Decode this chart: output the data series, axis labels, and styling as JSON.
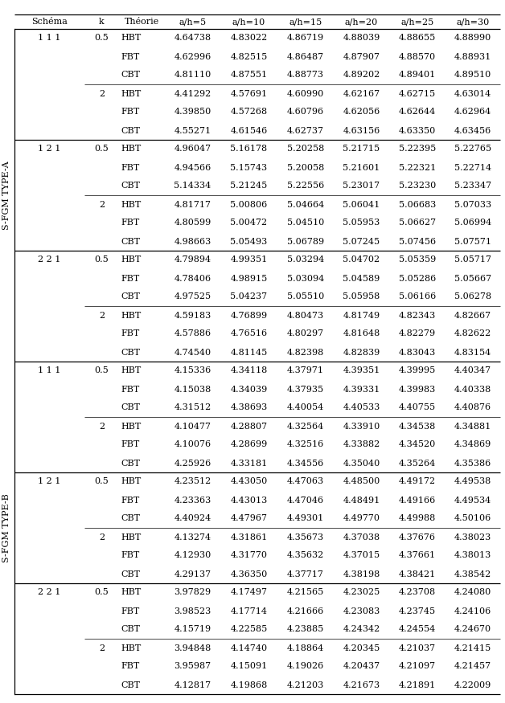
{
  "headers": [
    "Schéma",
    "k",
    "Théorie",
    "a/h=5",
    "a/h=10",
    "a/h=15",
    "a/h=20",
    "a/h=25",
    "a/h=30"
  ],
  "section_A_label": "S-FGM TYPE-A",
  "section_B_label": "S-FGM TYPE-B",
  "rows": [
    [
      "1 1 1",
      "0.5",
      "HBT",
      "4.64738",
      "4.83022",
      "4.86719",
      "4.88039",
      "4.88655",
      "4.88990"
    ],
    [
      "",
      "",
      "FBT",
      "4.62996",
      "4.82515",
      "4.86487",
      "4.87907",
      "4.88570",
      "4.88931"
    ],
    [
      "",
      "",
      "CBT",
      "4.81110",
      "4.87551",
      "4.88773",
      "4.89202",
      "4.89401",
      "4.89510"
    ],
    [
      "",
      "2",
      "HBT",
      "4.41292",
      "4.57691",
      "4.60990",
      "4.62167",
      "4.62715",
      "4.63014"
    ],
    [
      "",
      "",
      "FBT",
      "4.39850",
      "4.57268",
      "4.60796",
      "4.62056",
      "4.62644",
      "4.62964"
    ],
    [
      "",
      "",
      "CBT",
      "4.55271",
      "4.61546",
      "4.62737",
      "4.63156",
      "4.63350",
      "4.63456"
    ],
    [
      "1 2 1",
      "0.5",
      "HBT",
      "4.96047",
      "5.16178",
      "5.20258",
      "5.21715",
      "5.22395",
      "5.22765"
    ],
    [
      "",
      "",
      "FBT",
      "4.94566",
      "5.15743",
      "5.20058",
      "5.21601",
      "5.22321",
      "5.22714"
    ],
    [
      "",
      "",
      "CBT",
      "5.14334",
      "5.21245",
      "5.22556",
      "5.23017",
      "5.23230",
      "5.23347"
    ],
    [
      "",
      "2",
      "HBT",
      "4.81717",
      "5.00806",
      "5.04664",
      "5.06041",
      "5.06683",
      "5.07033"
    ],
    [
      "",
      "",
      "FBT",
      "4.80599",
      "5.00472",
      "5.04510",
      "5.05953",
      "5.06627",
      "5.06994"
    ],
    [
      "",
      "",
      "CBT",
      "4.98663",
      "5.05493",
      "5.06789",
      "5.07245",
      "5.07456",
      "5.07571"
    ],
    [
      "2 2 1",
      "0.5",
      "HBT",
      "4.79894",
      "4.99351",
      "5.03294",
      "5.04702",
      "5.05359",
      "5.05717"
    ],
    [
      "",
      "",
      "FBT",
      "4.78406",
      "4.98915",
      "5.03094",
      "5.04589",
      "5.05286",
      "5.05667"
    ],
    [
      "",
      "",
      "CBT",
      "4.97525",
      "5.04237",
      "5.05510",
      "5.05958",
      "5.06166",
      "5.06278"
    ],
    [
      "",
      "2",
      "HBT",
      "4.59183",
      "4.76899",
      "4.80473",
      "4.81749",
      "4.82343",
      "4.82667"
    ],
    [
      "",
      "",
      "FBT",
      "4.57886",
      "4.76516",
      "4.80297",
      "4.81648",
      "4.82279",
      "4.82622"
    ],
    [
      "",
      "",
      "CBT",
      "4.74540",
      "4.81145",
      "4.82398",
      "4.82839",
      "4.83043",
      "4.83154"
    ],
    [
      "1 1 1",
      "0.5",
      "HBT",
      "4.15336",
      "4.34118",
      "4.37971",
      "4.39351",
      "4.39995",
      "4.40347"
    ],
    [
      "",
      "",
      "FBT",
      "4.15038",
      "4.34039",
      "4.37935",
      "4.39331",
      "4.39983",
      "4.40338"
    ],
    [
      "",
      "",
      "CBT",
      "4.31512",
      "4.38693",
      "4.40054",
      "4.40533",
      "4.40755",
      "4.40876"
    ],
    [
      "",
      "2",
      "HBT",
      "4.10477",
      "4.28807",
      "4.32564",
      "4.33910",
      "4.34538",
      "4.34881"
    ],
    [
      "",
      "",
      "FBT",
      "4.10076",
      "4.28699",
      "4.32516",
      "4.33882",
      "4.34520",
      "4.34869"
    ],
    [
      "",
      "",
      "CBT",
      "4.25926",
      "4.33181",
      "4.34556",
      "4.35040",
      "4.35264",
      "4.35386"
    ],
    [
      "1 2 1",
      "0.5",
      "HBT",
      "4.23512",
      "4.43050",
      "4.47063",
      "4.48500",
      "4.49172",
      "4.49538"
    ],
    [
      "",
      "",
      "FBT",
      "4.23363",
      "4.43013",
      "4.47046",
      "4.48491",
      "4.49166",
      "4.49534"
    ],
    [
      "",
      "",
      "CBT",
      "4.40924",
      "4.47967",
      "4.49301",
      "4.49770",
      "4.49988",
      "4.50106"
    ],
    [
      "",
      "2",
      "HBT",
      "4.13274",
      "4.31861",
      "4.35673",
      "4.37038",
      "4.37676",
      "4.38023"
    ],
    [
      "",
      "",
      "FBT",
      "4.12930",
      "4.31770",
      "4.35632",
      "4.37015",
      "4.37661",
      "4.38013"
    ],
    [
      "",
      "",
      "CBT",
      "4.29137",
      "4.36350",
      "4.37717",
      "4.38198",
      "4.38421",
      "4.38542"
    ],
    [
      "2 2 1",
      "0.5",
      "HBT",
      "3.97829",
      "4.17497",
      "4.21565",
      "4.23025",
      "4.23708",
      "4.24080"
    ],
    [
      "",
      "",
      "FBT",
      "3.98523",
      "4.17714",
      "4.21666",
      "4.23083",
      "4.23745",
      "4.24106"
    ],
    [
      "",
      "",
      "CBT",
      "4.15719",
      "4.22585",
      "4.23885",
      "4.24342",
      "4.24554",
      "4.24670"
    ],
    [
      "",
      "2",
      "HBT",
      "3.94848",
      "4.14740",
      "4.18864",
      "4.20345",
      "4.21037",
      "4.21415"
    ],
    [
      "",
      "",
      "FBT",
      "3.95987",
      "4.15091",
      "4.19026",
      "4.20437",
      "4.21097",
      "4.21457"
    ],
    [
      "",
      "",
      "CBT",
      "4.12817",
      "4.19868",
      "4.21203",
      "4.21673",
      "4.21891",
      "4.22009"
    ]
  ],
  "bg_color": "#ffffff",
  "text_color": "#000000",
  "font_size": 8.0,
  "header_font_size": 8.0
}
